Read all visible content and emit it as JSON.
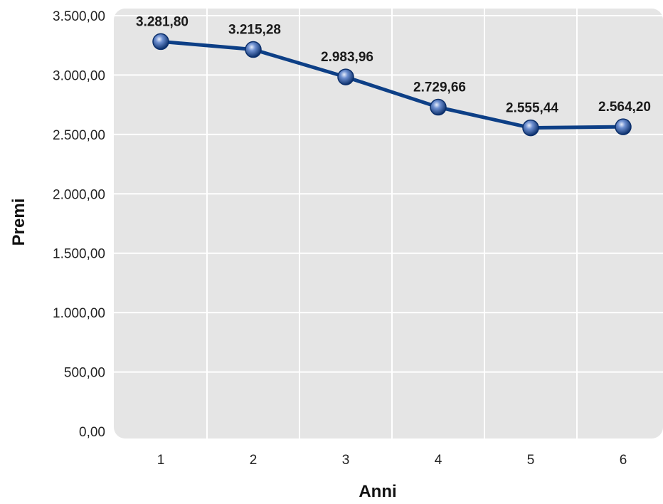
{
  "chart_data": {
    "type": "line",
    "xlabel": "Anni",
    "ylabel": "Premi",
    "categories": [
      "1",
      "2",
      "3",
      "4",
      "5",
      "6"
    ],
    "series": [
      {
        "values": [
          3281.8,
          3215.28,
          2983.96,
          2729.66,
          2555.44,
          2564.2
        ],
        "data_labels": [
          "3.281,80",
          "3.215,28",
          "2.983,96",
          "2.729,66",
          "2.555,44",
          "2.564,20"
        ],
        "color": "#0d3f86"
      }
    ],
    "ylim": [
      0,
      3500
    ],
    "yticks": [
      0,
      500,
      1000,
      1500,
      2000,
      2500,
      3000,
      3500
    ],
    "ytick_labels": [
      "0,00",
      "500,00",
      "1.000,00",
      "1.500,00",
      "2.000,00",
      "2.500,00",
      "3.000,00",
      "3.500,00"
    ],
    "grid": true,
    "legend": "none",
    "plot_background": "#e5e5e5",
    "grid_color": "#ffffff"
  }
}
